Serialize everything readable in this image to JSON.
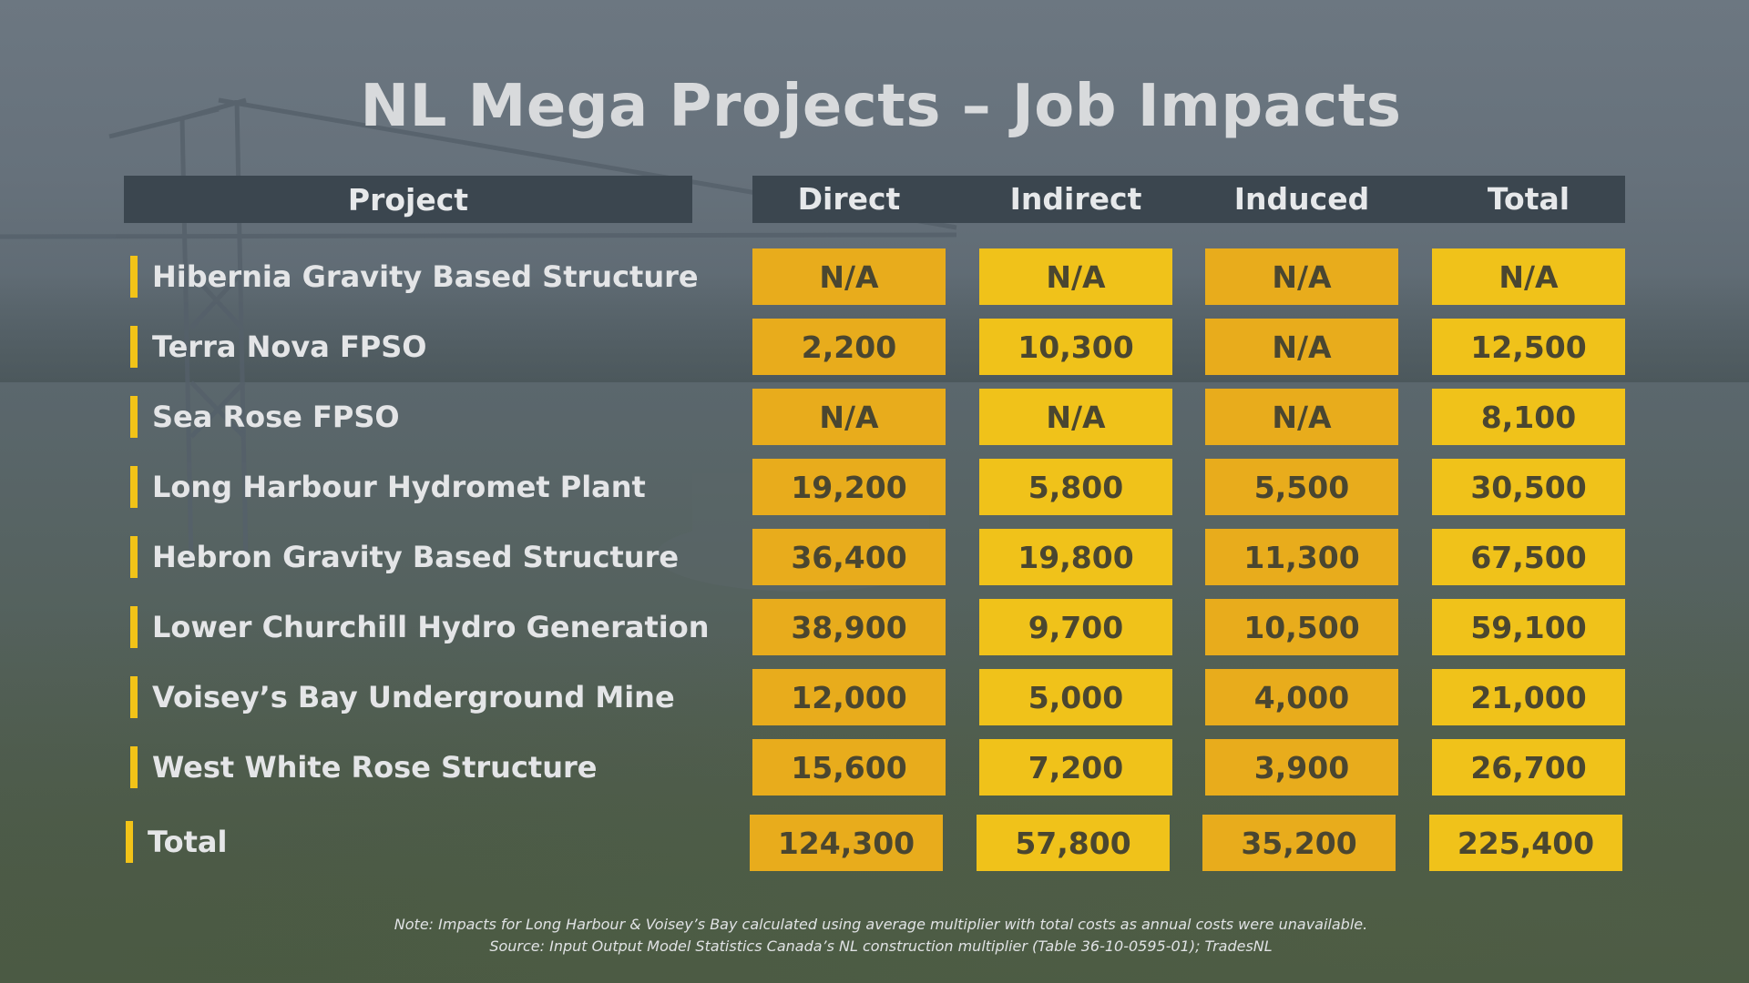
{
  "title": "NL Mega Projects – Job Impacts",
  "colors": {
    "header_bg": "#3b464f",
    "cell_dark": "#e8ac1c",
    "cell_light": "#f0c21a",
    "accent_bar": "#f2c318",
    "text_light": "#e4e5e7",
    "cell_text": "#4a4630"
  },
  "chart_data": {
    "type": "table",
    "title": "NL Mega Projects – Job Impacts",
    "columns": [
      "Project",
      "Direct",
      "Indirect",
      "Induced",
      "Total"
    ],
    "rows": [
      {
        "project": "Hibernia Gravity Based Structure",
        "direct": "N/A",
        "indirect": "N/A",
        "induced": "N/A",
        "total": "N/A"
      },
      {
        "project": "Terra Nova FPSO",
        "direct": "2,200",
        "indirect": "10,300",
        "induced": "N/A",
        "total": "12,500"
      },
      {
        "project": "Sea Rose FPSO",
        "direct": "N/A",
        "indirect": "N/A",
        "induced": "N/A",
        "total": "8,100"
      },
      {
        "project": "Long Harbour Hydromet Plant",
        "direct": "19,200",
        "indirect": "5,800",
        "induced": "5,500",
        "total": "30,500"
      },
      {
        "project": "Hebron Gravity Based Structure",
        "direct": "36,400",
        "indirect": "19,800",
        "induced": "11,300",
        "total": "67,500"
      },
      {
        "project": "Lower Churchill Hydro Generation",
        "direct": "38,900",
        "indirect": "9,700",
        "induced": "10,500",
        "total": "59,100"
      },
      {
        "project": "Voisey’s Bay Underground Mine",
        "direct": "12,000",
        "indirect": "5,000",
        "induced": "4,000",
        "total": "21,000"
      },
      {
        "project": "West White Rose Structure",
        "direct": "15,600",
        "indirect": "7,200",
        "induced": "3,900",
        "total": "26,700"
      }
    ],
    "total_row": {
      "project": "Total",
      "direct": "124,300",
      "indirect": "57,800",
      "induced": "35,200",
      "total": "225,400"
    }
  },
  "notes": {
    "line1": "Note: Impacts for Long Harbour & Voisey’s Bay calculated using average multiplier with total costs as annual costs were unavailable.",
    "line2": "Source:  Input Output Model Statistics Canada’s NL construction multiplier (Table 36-10-0595-01); TradesNL"
  }
}
